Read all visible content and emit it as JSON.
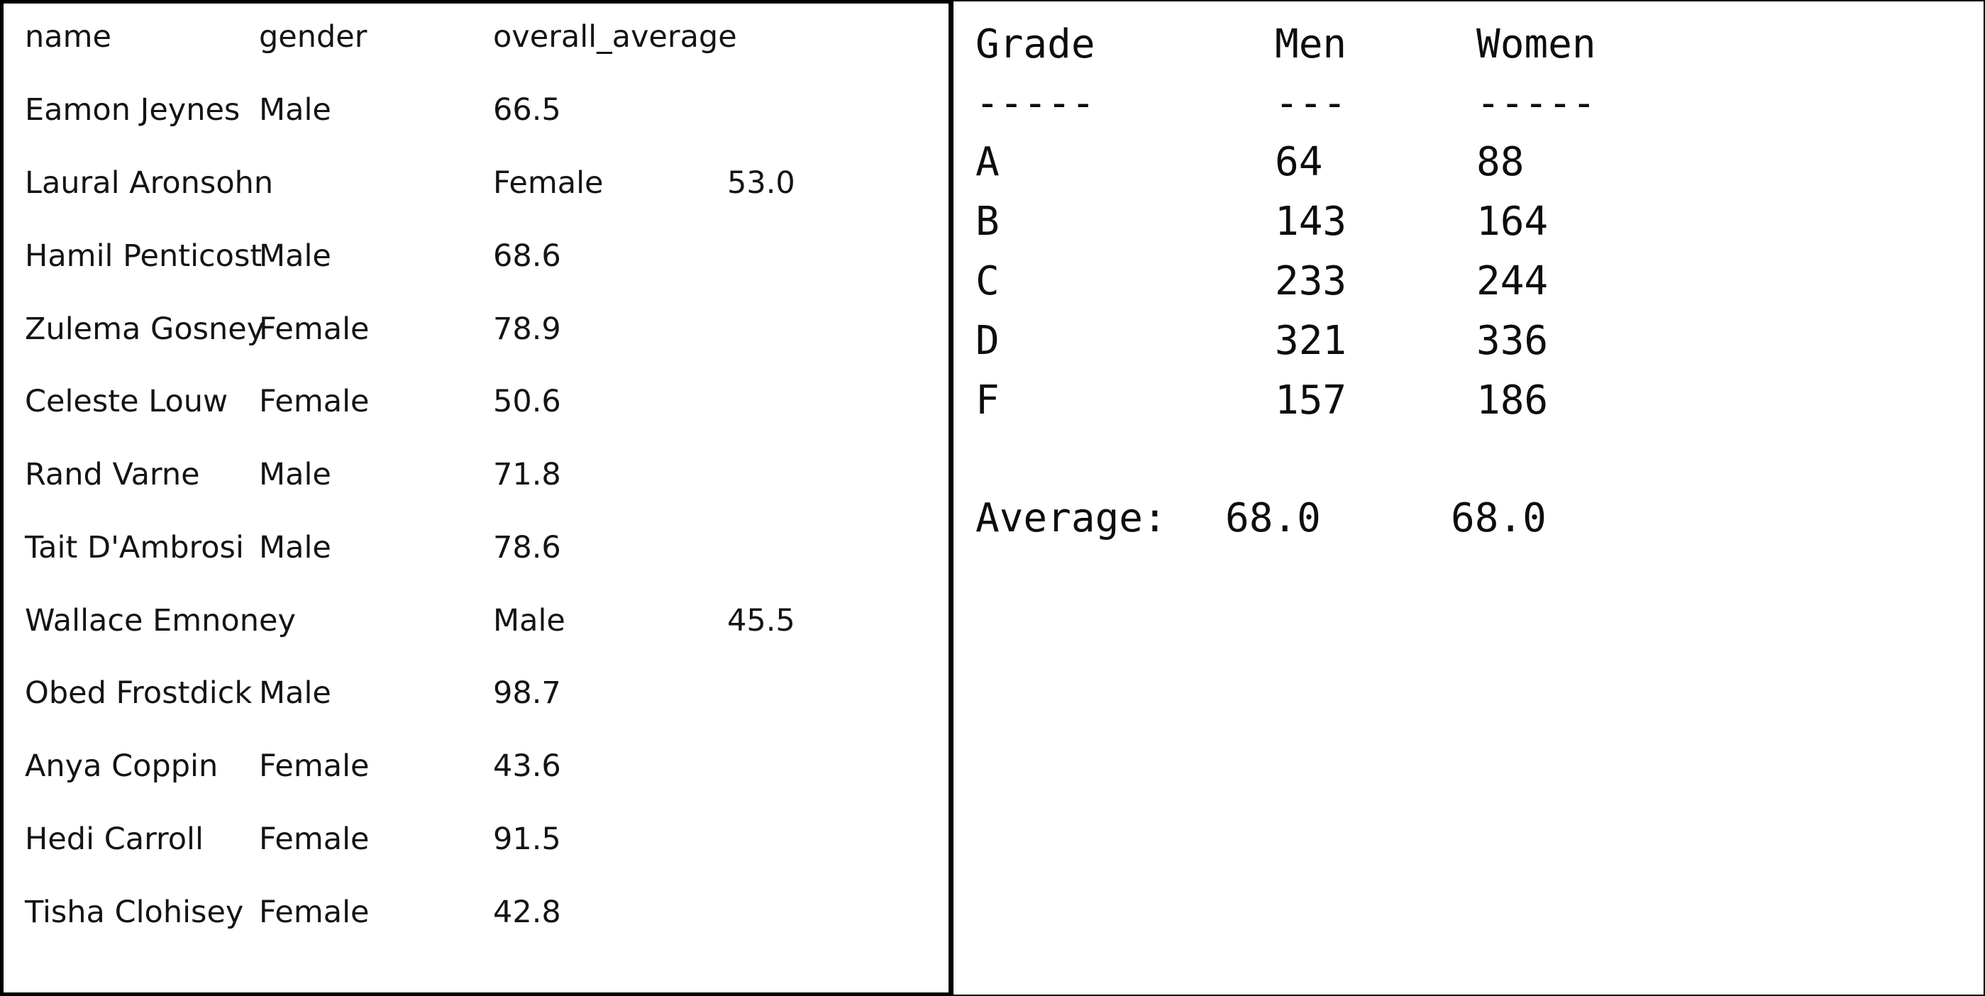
{
  "left_table": {
    "headers": [
      "name",
      "gender",
      "overall_average"
    ],
    "rows": [
      [
        "Eamon Jeynes",
        "Male",
        "66.5",
        ""
      ],
      [
        "Laural Aronsohn",
        "",
        "Female",
        "53.0"
      ],
      [
        "Hamil Penticost",
        "Male",
        "68.6",
        ""
      ],
      [
        "Zulema Gosney",
        "Female",
        "78.9",
        ""
      ],
      [
        "Celeste Louw",
        "Female",
        "50.6",
        ""
      ],
      [
        "Rand Varne",
        "Male",
        "71.8",
        ""
      ],
      [
        "Tait D'Ambrosi",
        "Male",
        "78.6",
        ""
      ],
      [
        "Wallace Emnoney",
        "",
        "Male",
        "45.5"
      ],
      [
        "Obed Frostdick",
        "Male",
        "98.7",
        ""
      ],
      [
        "Anya Coppin",
        "Female",
        "43.6",
        ""
      ],
      [
        "Hedi Carroll",
        "Female",
        "91.5",
        ""
      ],
      [
        "Tisha Clohisey",
        "Female",
        "42.8",
        ""
      ]
    ]
  },
  "right_summary": {
    "headers": [
      "Grade",
      "Men",
      "Women"
    ],
    "separators": [
      "-----",
      "---",
      "-----"
    ],
    "rows": [
      [
        "A",
        "64",
        "88"
      ],
      [
        "B",
        "143",
        "164"
      ],
      [
        "C",
        "233",
        "244"
      ],
      [
        "D",
        "321",
        "336"
      ],
      [
        "F",
        "157",
        "186"
      ]
    ],
    "average_label": "Average:",
    "average_men": "68.0",
    "average_women": "68.0"
  }
}
